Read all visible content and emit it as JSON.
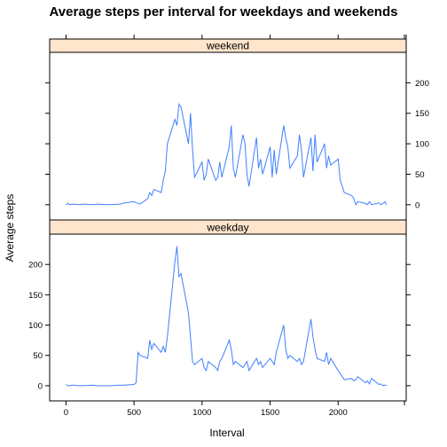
{
  "chart_data": {
    "type": "line",
    "title": "Average steps per interval for weekdays and weekends",
    "xlabel": "Interval",
    "ylabel": "Average steps",
    "xlim": [
      -120,
      2500
    ],
    "ylim": [
      -25,
      250
    ],
    "x_ticks": [
      0,
      500,
      1000,
      1500,
      2000
    ],
    "y_ticks": [
      0,
      50,
      100,
      150,
      200
    ],
    "grid": false,
    "line_color": "#3f7fff",
    "strip_color": "#ffe5cc",
    "panels": [
      {
        "name": "weekend",
        "y_axis_side": "right",
        "x": [
          0,
          15,
          30,
          45,
          100,
          130,
          200,
          230,
          300,
          330,
          400,
          430,
          500,
          530,
          545,
          600,
          615,
          630,
          645,
          700,
          715,
          730,
          745,
          800,
          815,
          830,
          845,
          900,
          915,
          930,
          945,
          1000,
          1015,
          1030,
          1045,
          1100,
          1115,
          1130,
          1145,
          1200,
          1215,
          1230,
          1245,
          1300,
          1315,
          1330,
          1345,
          1400,
          1415,
          1430,
          1445,
          1500,
          1515,
          1530,
          1545,
          1600,
          1615,
          1630,
          1645,
          1700,
          1715,
          1730,
          1745,
          1800,
          1815,
          1830,
          1845,
          1900,
          1915,
          1930,
          1945,
          2000,
          2015,
          2030,
          2045,
          2100,
          2115,
          2130,
          2145,
          2200,
          2215,
          2230,
          2245,
          2300,
          2315,
          2330,
          2345,
          2355
        ],
        "values": [
          0,
          2,
          0,
          1,
          0,
          1,
          0,
          1,
          0,
          0,
          1,
          3,
          5,
          2,
          1,
          10,
          20,
          15,
          25,
          20,
          40,
          55,
          100,
          140,
          130,
          165,
          160,
          100,
          150,
          90,
          45,
          70,
          40,
          50,
          75,
          40,
          45,
          70,
          45,
          95,
          130,
          60,
          45,
          115,
          100,
          50,
          30,
          110,
          60,
          75,
          50,
          95,
          45,
          90,
          50,
          130,
          110,
          95,
          60,
          80,
          115,
          90,
          45,
          110,
          55,
          115,
          70,
          100,
          60,
          80,
          65,
          75,
          40,
          30,
          20,
          15,
          10,
          0,
          5,
          2,
          0,
          5,
          0,
          3,
          0,
          2,
          5,
          0
        ]
      },
      {
        "name": "weekday",
        "y_axis_side": "left",
        "x": [
          0,
          15,
          30,
          45,
          100,
          130,
          200,
          230,
          300,
          330,
          400,
          430,
          500,
          515,
          530,
          545,
          600,
          615,
          630,
          645,
          700,
          715,
          730,
          745,
          800,
          815,
          830,
          845,
          900,
          915,
          930,
          945,
          1000,
          1015,
          1030,
          1045,
          1100,
          1115,
          1130,
          1145,
          1200,
          1215,
          1230,
          1245,
          1300,
          1315,
          1330,
          1345,
          1400,
          1415,
          1430,
          1445,
          1500,
          1515,
          1530,
          1545,
          1600,
          1615,
          1630,
          1645,
          1700,
          1715,
          1730,
          1745,
          1800,
          1815,
          1830,
          1845,
          1900,
          1915,
          1930,
          1945,
          2000,
          2015,
          2030,
          2045,
          2100,
          2115,
          2130,
          2145,
          2200,
          2215,
          2230,
          2245,
          2300,
          2315,
          2330,
          2345,
          2355
        ],
        "values": [
          2,
          0,
          0,
          1,
          0,
          0,
          1,
          0,
          0,
          0,
          1,
          1,
          2,
          5,
          55,
          50,
          45,
          75,
          60,
          70,
          55,
          65,
          55,
          80,
          205,
          230,
          180,
          185,
          120,
          80,
          40,
          35,
          45,
          30,
          25,
          40,
          30,
          25,
          40,
          45,
          75,
          60,
          35,
          40,
          30,
          35,
          40,
          25,
          45,
          35,
          40,
          30,
          45,
          40,
          35,
          55,
          100,
          60,
          45,
          50,
          40,
          45,
          35,
          40,
          110,
          80,
          60,
          45,
          40,
          55,
          35,
          45,
          25,
          20,
          15,
          10,
          12,
          8,
          10,
          15,
          5,
          8,
          3,
          12,
          2,
          3,
          0,
          1,
          0
        ]
      }
    ]
  }
}
